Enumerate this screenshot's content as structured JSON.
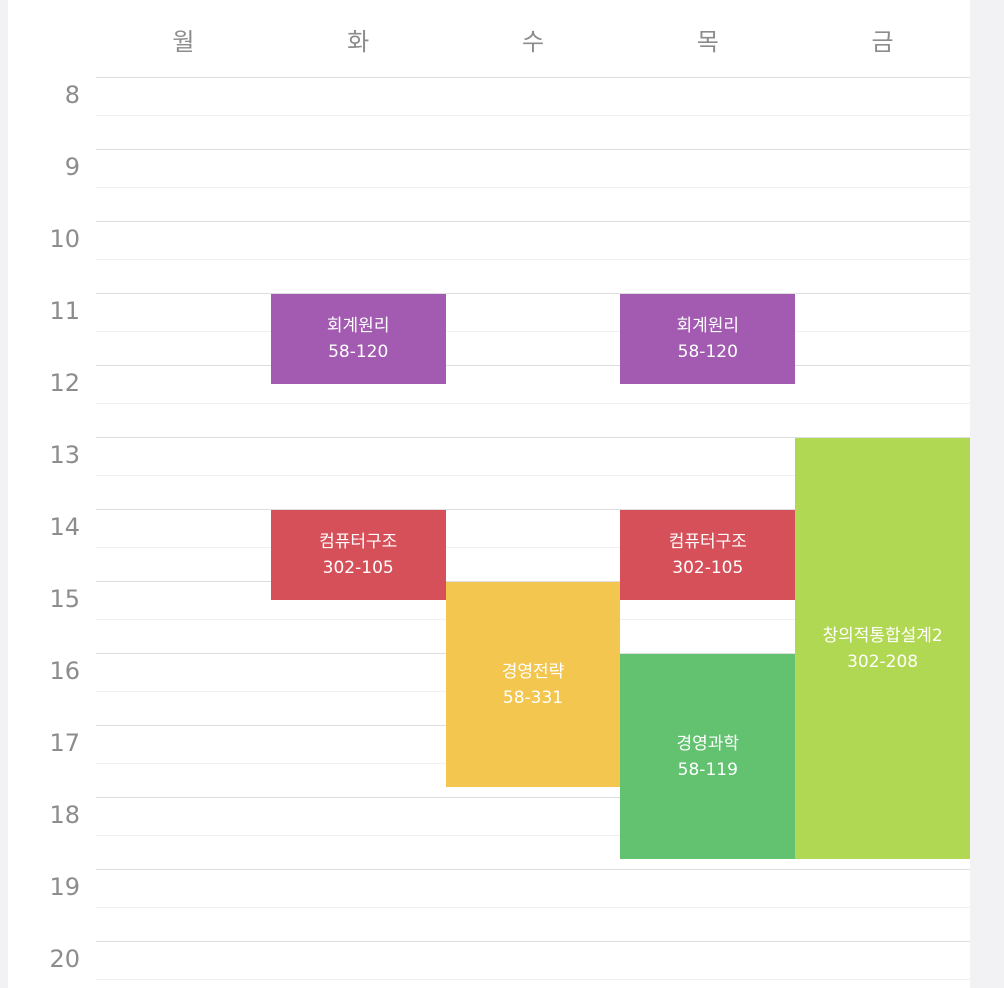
{
  "days": [
    "월",
    "화",
    "수",
    "목",
    "금"
  ],
  "hours": [
    "8",
    "9",
    "10",
    "11",
    "12",
    "13",
    "14",
    "15",
    "16",
    "17",
    "18",
    "19",
    "20"
  ],
  "start_hour": 8,
  "events": [
    {
      "day": 1,
      "start": 11,
      "end": 12.25,
      "name": "회계원리",
      "room": "58-120",
      "color": "#a25bb0"
    },
    {
      "day": 3,
      "start": 11,
      "end": 12.25,
      "name": "회계원리",
      "room": "58-120",
      "color": "#a25bb0"
    },
    {
      "day": 1,
      "start": 14,
      "end": 15.25,
      "name": "컴퓨터구조",
      "room": "302-105",
      "color": "#d6505a"
    },
    {
      "day": 3,
      "start": 14,
      "end": 15.25,
      "name": "컴퓨터구조",
      "room": "302-105",
      "color": "#d6505a"
    },
    {
      "day": 2,
      "start": 15,
      "end": 17.85,
      "name": "경영전략",
      "room": "58-331",
      "color": "#f2c64f"
    },
    {
      "day": 3,
      "start": 16,
      "end": 18.85,
      "name": "경영과학",
      "room": "58-119",
      "color": "#62c270"
    },
    {
      "day": 4,
      "start": 13,
      "end": 18.85,
      "name": "창의적통합설계2",
      "room": "302-208",
      "color": "#b1d852"
    }
  ]
}
